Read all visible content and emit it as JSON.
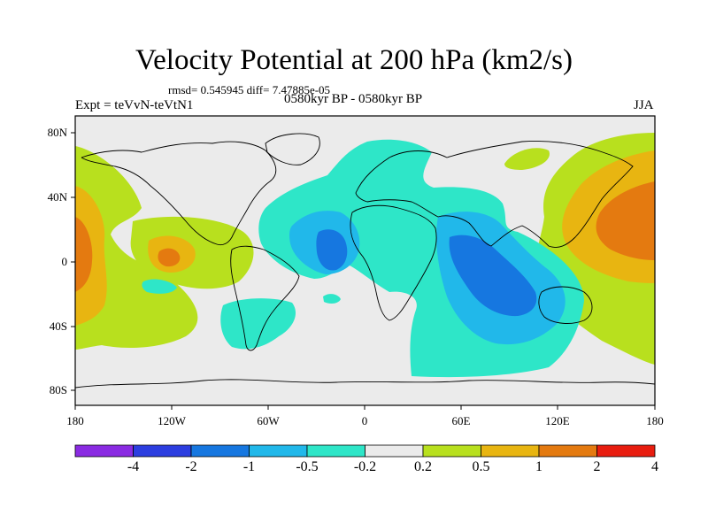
{
  "title": "Velocity Potential at 200 hPa (km2/s)",
  "stats_line": "rmsd= 0.545945 diff= 7.47885e-05",
  "experiment": "Expt = teVvN-teVtN1",
  "period": "0580kyr BP - 0580kyr BP",
  "season": "JJA",
  "lat_labels": [
    "80N",
    "40N",
    "0",
    "40S",
    "80S"
  ],
  "lon_labels": [
    "180",
    "120W",
    "60W",
    "0",
    "60E",
    "120E",
    "180"
  ],
  "colorbar": {
    "labels": [
      "-4",
      "-2",
      "-1",
      "-0.5",
      "-0.2",
      "0.2",
      "0.5",
      "1",
      "2",
      "4"
    ],
    "colors": [
      "#8a2be2",
      "#2c3ee0",
      "#1677e0",
      "#21b8ea",
      "#2ee6c8",
      "#ebebeb",
      "#b8e01e",
      "#e8b511",
      "#e47a10",
      "#e81d0f"
    ]
  },
  "map_colors": {
    "neutral": "#ebebeb",
    "neg_02_05": "#2ee6c8",
    "neg_05_1": "#21b8ea",
    "neg_1_2": "#1677e0",
    "pos_02_05": "#b8e01e",
    "pos_05_1": "#e8b511",
    "pos_1_2": "#e47a10"
  }
}
